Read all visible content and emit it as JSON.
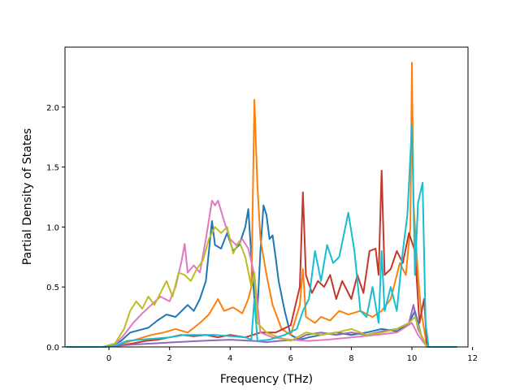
{
  "chart_data": {
    "type": "line",
    "title": "",
    "xlabel": "Frequency (THz)",
    "ylabel": "Partial Density of States",
    "xlim": [
      -1.45,
      11.85
    ],
    "ylim": [
      0,
      2.5
    ],
    "xticks": [
      0,
      2,
      4,
      6,
      8,
      10,
      12
    ],
    "xtick_labels": [
      "0",
      "2",
      "4",
      "6",
      "8",
      "10",
      "12"
    ],
    "yticks": [
      0.0,
      0.5,
      1.0,
      1.5,
      2.0
    ],
    "ytick_labels": [
      "0.0",
      "0.5",
      "1.0",
      "1.5",
      "2.0"
    ],
    "grid": false,
    "legend": "none",
    "series": [
      {
        "color": "#1f77b4",
        "points": [
          [
            -1.4,
            0
          ],
          [
            -0.2,
            0
          ],
          [
            0.1,
            0.01
          ],
          [
            0.4,
            0.05
          ],
          [
            0.7,
            0.12
          ],
          [
            1.0,
            0.14
          ],
          [
            1.3,
            0.16
          ],
          [
            1.6,
            0.22
          ],
          [
            1.9,
            0.27
          ],
          [
            2.2,
            0.25
          ],
          [
            2.4,
            0.3
          ],
          [
            2.6,
            0.35
          ],
          [
            2.8,
            0.3
          ],
          [
            3.0,
            0.4
          ],
          [
            3.2,
            0.55
          ],
          [
            3.4,
            1.05
          ],
          [
            3.5,
            0.85
          ],
          [
            3.7,
            0.82
          ],
          [
            3.9,
            0.95
          ],
          [
            4.1,
            0.8
          ],
          [
            4.3,
            0.85
          ],
          [
            4.5,
            1.0
          ],
          [
            4.6,
            1.15
          ],
          [
            4.7,
            0.75
          ],
          [
            4.8,
            0.4
          ],
          [
            4.9,
            0.3
          ],
          [
            5.0,
            0.8
          ],
          [
            5.1,
            1.18
          ],
          [
            5.2,
            1.1
          ],
          [
            5.3,
            0.9
          ],
          [
            5.4,
            0.93
          ],
          [
            5.5,
            0.75
          ],
          [
            5.6,
            0.55
          ],
          [
            5.8,
            0.3
          ],
          [
            6.0,
            0.1
          ],
          [
            6.3,
            0.06
          ],
          [
            6.6,
            0.08
          ],
          [
            7.0,
            0.1
          ],
          [
            7.5,
            0.12
          ],
          [
            8.0,
            0.1
          ],
          [
            8.5,
            0.12
          ],
          [
            9.0,
            0.15
          ],
          [
            9.5,
            0.13
          ],
          [
            9.9,
            0.2
          ],
          [
            10.1,
            0.3
          ],
          [
            10.3,
            0.1
          ],
          [
            10.5,
            0
          ],
          [
            11.5,
            0
          ]
        ]
      },
      {
        "color": "#ff7f0e",
        "points": [
          [
            -1.4,
            0
          ],
          [
            -0.2,
            0
          ],
          [
            0.2,
            0.01
          ],
          [
            0.6,
            0.04
          ],
          [
            1.0,
            0.07
          ],
          [
            1.4,
            0.1
          ],
          [
            1.8,
            0.12
          ],
          [
            2.2,
            0.15
          ],
          [
            2.6,
            0.12
          ],
          [
            3.0,
            0.2
          ],
          [
            3.3,
            0.27
          ],
          [
            3.6,
            0.4
          ],
          [
            3.8,
            0.3
          ],
          [
            4.1,
            0.33
          ],
          [
            4.4,
            0.28
          ],
          [
            4.6,
            0.4
          ],
          [
            4.7,
            0.5
          ],
          [
            4.8,
            2.06
          ],
          [
            4.9,
            1.35
          ],
          [
            5.0,
            0.9
          ],
          [
            5.2,
            0.6
          ],
          [
            5.4,
            0.35
          ],
          [
            5.7,
            0.15
          ],
          [
            6.0,
            0.1
          ],
          [
            6.3,
            0.35
          ],
          [
            6.4,
            0.65
          ],
          [
            6.5,
            0.25
          ],
          [
            6.8,
            0.2
          ],
          [
            7.0,
            0.25
          ],
          [
            7.3,
            0.22
          ],
          [
            7.6,
            0.3
          ],
          [
            7.9,
            0.27
          ],
          [
            8.3,
            0.3
          ],
          [
            8.7,
            0.25
          ],
          [
            9.0,
            0.3
          ],
          [
            9.3,
            0.4
          ],
          [
            9.6,
            0.7
          ],
          [
            9.8,
            0.6
          ],
          [
            9.95,
            1.0
          ],
          [
            10.0,
            2.37
          ],
          [
            10.05,
            1.2
          ],
          [
            10.2,
            0.6
          ],
          [
            10.3,
            0.3
          ],
          [
            10.5,
            0
          ],
          [
            11.5,
            0
          ]
        ]
      },
      {
        "color": "#c0392b",
        "points": [
          [
            -1.4,
            0
          ],
          [
            -0.2,
            0
          ],
          [
            0.3,
            0.01
          ],
          [
            0.8,
            0.03
          ],
          [
            1.2,
            0.05
          ],
          [
            1.6,
            0.06
          ],
          [
            2.0,
            0.08
          ],
          [
            2.4,
            0.1
          ],
          [
            2.8,
            0.09
          ],
          [
            3.2,
            0.1
          ],
          [
            3.6,
            0.08
          ],
          [
            4.0,
            0.1
          ],
          [
            4.5,
            0.08
          ],
          [
            5.0,
            0.12
          ],
          [
            5.5,
            0.12
          ],
          [
            6.0,
            0.18
          ],
          [
            6.3,
            0.5
          ],
          [
            6.4,
            1.29
          ],
          [
            6.5,
            0.6
          ],
          [
            6.7,
            0.45
          ],
          [
            6.9,
            0.55
          ],
          [
            7.1,
            0.5
          ],
          [
            7.3,
            0.6
          ],
          [
            7.5,
            0.4
          ],
          [
            7.7,
            0.55
          ],
          [
            8.0,
            0.4
          ],
          [
            8.2,
            0.6
          ],
          [
            8.4,
            0.45
          ],
          [
            8.6,
            0.8
          ],
          [
            8.8,
            0.82
          ],
          [
            8.9,
            0.6
          ],
          [
            9.0,
            1.47
          ],
          [
            9.1,
            0.6
          ],
          [
            9.3,
            0.65
          ],
          [
            9.5,
            0.8
          ],
          [
            9.7,
            0.7
          ],
          [
            9.9,
            0.95
          ],
          [
            10.1,
            0.8
          ],
          [
            10.25,
            0.2
          ],
          [
            10.4,
            0.4
          ],
          [
            10.5,
            0
          ],
          [
            11.5,
            0
          ]
        ]
      },
      {
        "color": "#9467bd",
        "points": [
          [
            -1.4,
            0
          ],
          [
            -0.2,
            0
          ],
          [
            0.3,
            0.01
          ],
          [
            0.8,
            0.02
          ],
          [
            1.5,
            0.03
          ],
          [
            2.2,
            0.04
          ],
          [
            3.0,
            0.05
          ],
          [
            4.0,
            0.06
          ],
          [
            4.8,
            0.05
          ],
          [
            5.2,
            0.04
          ],
          [
            5.6,
            0.05
          ],
          [
            6.2,
            0.06
          ],
          [
            6.5,
            0.1
          ],
          [
            7.0,
            0.12
          ],
          [
            7.5,
            0.1
          ],
          [
            8.0,
            0.12
          ],
          [
            8.5,
            0.1
          ],
          [
            9.0,
            0.13
          ],
          [
            9.5,
            0.15
          ],
          [
            9.9,
            0.2
          ],
          [
            10.05,
            0.35
          ],
          [
            10.2,
            0.15
          ],
          [
            10.5,
            0
          ],
          [
            11.5,
            0
          ]
        ]
      },
      {
        "color": "#e377c2",
        "points": [
          [
            -1.4,
            0
          ],
          [
            -0.2,
            0
          ],
          [
            0.2,
            0.02
          ],
          [
            0.5,
            0.1
          ],
          [
            0.8,
            0.2
          ],
          [
            1.1,
            0.28
          ],
          [
            1.4,
            0.35
          ],
          [
            1.7,
            0.42
          ],
          [
            2.0,
            0.38
          ],
          [
            2.2,
            0.5
          ],
          [
            2.4,
            0.72
          ],
          [
            2.5,
            0.86
          ],
          [
            2.6,
            0.62
          ],
          [
            2.8,
            0.68
          ],
          [
            3.0,
            0.62
          ],
          [
            3.2,
            0.9
          ],
          [
            3.4,
            1.22
          ],
          [
            3.5,
            1.18
          ],
          [
            3.6,
            1.22
          ],
          [
            3.8,
            1.05
          ],
          [
            4.0,
            0.9
          ],
          [
            4.2,
            0.85
          ],
          [
            4.4,
            0.9
          ],
          [
            4.6,
            0.82
          ],
          [
            4.8,
            0.6
          ],
          [
            5.0,
            0.12
          ],
          [
            5.4,
            0.08
          ],
          [
            6.0,
            0.06
          ],
          [
            6.6,
            0.05
          ],
          [
            7.2,
            0.06
          ],
          [
            8.0,
            0.08
          ],
          [
            8.8,
            0.1
          ],
          [
            9.5,
            0.12
          ],
          [
            10.0,
            0.2
          ],
          [
            10.2,
            0.1
          ],
          [
            10.5,
            0
          ],
          [
            11.5,
            0
          ]
        ]
      },
      {
        "color": "#bcbd22",
        "points": [
          [
            -1.4,
            0
          ],
          [
            -0.2,
            0
          ],
          [
            0.2,
            0.03
          ],
          [
            0.5,
            0.15
          ],
          [
            0.7,
            0.3
          ],
          [
            0.9,
            0.38
          ],
          [
            1.1,
            0.32
          ],
          [
            1.3,
            0.42
          ],
          [
            1.5,
            0.35
          ],
          [
            1.7,
            0.45
          ],
          [
            1.9,
            0.55
          ],
          [
            2.1,
            0.42
          ],
          [
            2.3,
            0.62
          ],
          [
            2.5,
            0.6
          ],
          [
            2.7,
            0.55
          ],
          [
            2.9,
            0.65
          ],
          [
            3.1,
            0.72
          ],
          [
            3.3,
            0.9
          ],
          [
            3.5,
            1.0
          ],
          [
            3.7,
            0.95
          ],
          [
            3.9,
            1.0
          ],
          [
            4.1,
            0.78
          ],
          [
            4.3,
            0.88
          ],
          [
            4.5,
            0.75
          ],
          [
            4.7,
            0.5
          ],
          [
            4.8,
            0.62
          ],
          [
            4.9,
            0.2
          ],
          [
            5.2,
            0.12
          ],
          [
            5.6,
            0.08
          ],
          [
            6.0,
            0.05
          ],
          [
            6.5,
            0.12
          ],
          [
            7.0,
            0.1
          ],
          [
            7.5,
            0.12
          ],
          [
            8.0,
            0.15
          ],
          [
            8.5,
            0.1
          ],
          [
            9.0,
            0.12
          ],
          [
            9.5,
            0.15
          ],
          [
            9.9,
            0.2
          ],
          [
            10.1,
            0.25
          ],
          [
            10.3,
            0.1
          ],
          [
            10.5,
            0
          ],
          [
            11.5,
            0
          ]
        ]
      },
      {
        "color": "#17becf",
        "points": [
          [
            -1.4,
            0
          ],
          [
            -0.2,
            0
          ],
          [
            0.2,
            0.01
          ],
          [
            0.6,
            0.05
          ],
          [
            1.0,
            0.06
          ],
          [
            1.5,
            0.07
          ],
          [
            2.0,
            0.08
          ],
          [
            2.5,
            0.1
          ],
          [
            3.0,
            0.1
          ],
          [
            3.5,
            0.1
          ],
          [
            4.0,
            0.09
          ],
          [
            4.5,
            0.08
          ],
          [
            4.7,
            0.06
          ],
          [
            4.8,
            0.4
          ],
          [
            4.9,
            0.05
          ],
          [
            5.3,
            0.06
          ],
          [
            5.8,
            0.1
          ],
          [
            6.2,
            0.15
          ],
          [
            6.4,
            0.3
          ],
          [
            6.6,
            0.4
          ],
          [
            6.8,
            0.8
          ],
          [
            7.0,
            0.55
          ],
          [
            7.2,
            0.85
          ],
          [
            7.4,
            0.7
          ],
          [
            7.6,
            0.75
          ],
          [
            7.9,
            1.12
          ],
          [
            8.1,
            0.8
          ],
          [
            8.3,
            0.3
          ],
          [
            8.5,
            0.25
          ],
          [
            8.7,
            0.5
          ],
          [
            8.9,
            0.2
          ],
          [
            9.0,
            0.8
          ],
          [
            9.1,
            0.3
          ],
          [
            9.3,
            0.5
          ],
          [
            9.5,
            0.3
          ],
          [
            9.7,
            0.8
          ],
          [
            9.85,
            1.1
          ],
          [
            10.0,
            1.85
          ],
          [
            10.1,
            0.6
          ],
          [
            10.2,
            1.2
          ],
          [
            10.35,
            1.37
          ],
          [
            10.45,
            0.2
          ],
          [
            10.55,
            0
          ],
          [
            11.5,
            0
          ]
        ]
      }
    ]
  }
}
